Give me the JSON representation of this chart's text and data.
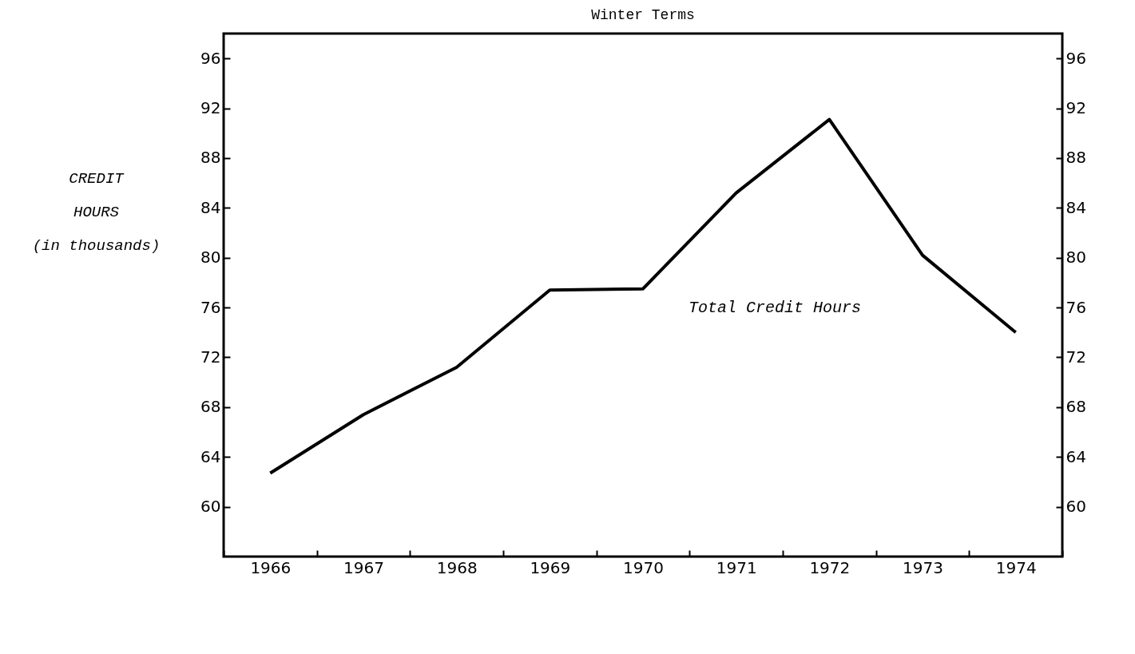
{
  "chart_data": {
    "type": "line",
    "title": "Winter Terms",
    "ylabel": "CREDIT\nHOURS\n(in thousands)",
    "categories": [
      "1966",
      "1967",
      "1968",
      "1969",
      "1970",
      "1971",
      "1972",
      "1973",
      "1974"
    ],
    "series": [
      {
        "name": "Total Credit Hours",
        "color": "#000000",
        "values": [
          62.7,
          67.4,
          71.2,
          77.4,
          77.5,
          85.2,
          91.1,
          80.2,
          74.0
        ]
      }
    ],
    "ylim": [
      56,
      98
    ],
    "yticks": [
      60,
      64,
      68,
      72,
      76,
      80,
      84,
      88,
      92,
      96
    ],
    "y2lim": [
      56,
      98
    ],
    "y2ticks": [
      60,
      64,
      68,
      72,
      76,
      80,
      84,
      88,
      92,
      96
    ],
    "grid": false,
    "legend": false,
    "marker": "none",
    "line_style": "solid"
  }
}
